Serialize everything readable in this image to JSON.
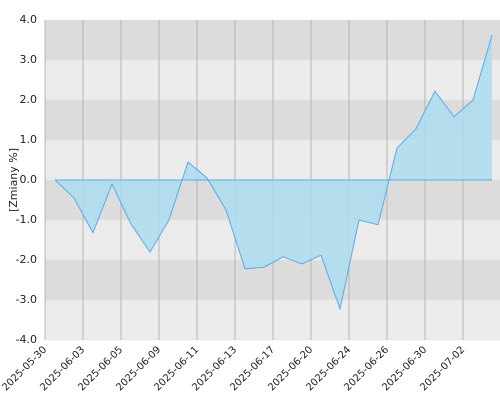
{
  "chart_data": {
    "type": "area",
    "y_label": "[Zmiany %]",
    "categories": [
      "2025-05-30",
      null,
      "2025-06-03",
      null,
      "2025-06-05",
      null,
      "2025-06-09",
      null,
      "2025-06-11",
      null,
      "2025-06-13",
      null,
      "2025-06-17",
      null,
      "2025-06-20",
      null,
      "2025-06-24",
      null,
      "2025-06-26",
      null,
      "2025-06-30",
      null,
      "2025-07-02",
      null
    ],
    "values": [
      0.0,
      -0.45,
      -1.32,
      -0.1,
      -1.1,
      -1.8,
      -1.0,
      0.45,
      0.05,
      -0.75,
      -2.22,
      -2.18,
      -1.92,
      -2.1,
      -1.88,
      -3.22,
      -1.0,
      -1.12,
      0.8,
      1.28,
      2.22,
      1.58,
      2.0,
      3.62
    ],
    "color": "#5aabe8",
    "fill": "#acdcef",
    "ylim": [
      -4,
      4
    ],
    "yticks": [
      {
        "value": -4,
        "label": "-4.0"
      },
      {
        "value": -3,
        "label": "-3.0"
      },
      {
        "value": -2,
        "label": "-2.0"
      },
      {
        "value": -1,
        "label": "-1.0"
      },
      {
        "value": 0,
        "label": "0.0"
      },
      {
        "value": 1,
        "label": "1.0"
      },
      {
        "value": 2,
        "label": "2.0"
      },
      {
        "value": 3,
        "label": "3.0"
      },
      {
        "value": 4,
        "label": "4.0"
      }
    ],
    "grid": true
  }
}
